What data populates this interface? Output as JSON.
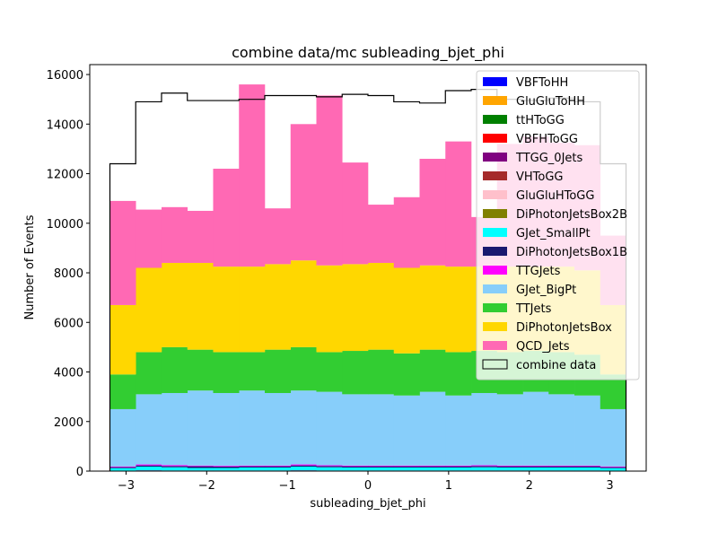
{
  "chart_data": {
    "type": "bar",
    "title": "combine data/mc subleading_bjet_phi",
    "xlabel": "subleading_bjet_phi",
    "ylabel": "Number of Events",
    "xlim": [
      -3.45,
      3.45
    ],
    "ylim": [
      0,
      16400
    ],
    "x_ticks": [
      -3,
      -2,
      -1,
      0,
      1,
      2,
      3
    ],
    "x_tick_labels": [
      "−3",
      "−2",
      "−1",
      "0",
      "1",
      "2",
      "3"
    ],
    "y_ticks": [
      0,
      2000,
      4000,
      6000,
      8000,
      10000,
      12000,
      14000,
      16000
    ],
    "y_tick_labels": [
      "0",
      "2000",
      "4000",
      "6000",
      "8000",
      "10000",
      "12000",
      "14000",
      "16000"
    ],
    "bin_edges": [
      -3.2,
      -2.88,
      -2.56,
      -2.24,
      -1.92,
      -1.6,
      -1.28,
      -0.96,
      -0.64,
      -0.32,
      0.0,
      0.32,
      0.64,
      0.96,
      1.28,
      1.6,
      1.92,
      2.24,
      2.56,
      2.88,
      3.2
    ],
    "stacked": true,
    "legend_position": "upper right",
    "series": [
      {
        "name": "VBFToHH",
        "color": "#0000ff",
        "values": [
          0,
          0,
          0,
          0,
          0,
          0,
          0,
          0,
          0,
          0,
          0,
          0,
          0,
          0,
          0,
          0,
          0,
          0,
          0,
          0
        ]
      },
      {
        "name": "GluGluToHH",
        "color": "#ffa500",
        "values": [
          0,
          0,
          0,
          0,
          0,
          0,
          0,
          0,
          0,
          0,
          0,
          0,
          0,
          0,
          0,
          0,
          0,
          0,
          0,
          0
        ]
      },
      {
        "name": "ttHToGG",
        "color": "#008000",
        "values": [
          0,
          0,
          0,
          0,
          0,
          0,
          0,
          0,
          0,
          0,
          0,
          0,
          0,
          0,
          0,
          0,
          0,
          0,
          0,
          0
        ]
      },
      {
        "name": "VBFHToGG",
        "color": "#ff0000",
        "values": [
          0,
          0,
          0,
          0,
          0,
          0,
          0,
          0,
          0,
          0,
          0,
          0,
          0,
          0,
          0,
          0,
          0,
          0,
          0,
          0
        ]
      },
      {
        "name": "TTGG_0Jets",
        "color": "#800080",
        "values": [
          20,
          30,
          25,
          25,
          25,
          25,
          25,
          30,
          25,
          25,
          25,
          25,
          25,
          25,
          25,
          25,
          25,
          25,
          25,
          20
        ]
      },
      {
        "name": "VHToGG",
        "color": "#a52a2a",
        "values": [
          0,
          0,
          0,
          0,
          0,
          0,
          0,
          0,
          0,
          0,
          0,
          0,
          0,
          0,
          0,
          0,
          0,
          0,
          0,
          0
        ]
      },
      {
        "name": "GluGluHToGG",
        "color": "#ffc0cb",
        "values": [
          0,
          0,
          0,
          0,
          0,
          0,
          0,
          0,
          0,
          0,
          0,
          0,
          0,
          0,
          0,
          0,
          0,
          0,
          0,
          0
        ]
      },
      {
        "name": "DiPhotonJetsBox2B",
        "color": "#808000",
        "values": [
          0,
          0,
          0,
          0,
          0,
          0,
          0,
          0,
          0,
          0,
          0,
          0,
          0,
          0,
          0,
          0,
          0,
          0,
          0,
          0
        ]
      },
      {
        "name": "GJet_SmallPt",
        "color": "#00ffff",
        "values": [
          100,
          150,
          130,
          100,
          100,
          120,
          120,
          150,
          130,
          120,
          120,
          120,
          120,
          120,
          130,
          120,
          120,
          120,
          120,
          100
        ]
      },
      {
        "name": "DiPhotonJetsBox1B",
        "color": "#191970",
        "values": [
          40,
          50,
          50,
          70,
          60,
          50,
          50,
          50,
          50,
          50,
          50,
          50,
          50,
          50,
          50,
          50,
          50,
          50,
          50,
          40
        ]
      },
      {
        "name": "TTGJets",
        "color": "#ff00ff",
        "values": [
          30,
          40,
          40,
          30,
          30,
          30,
          30,
          40,
          30,
          30,
          30,
          30,
          30,
          30,
          30,
          30,
          30,
          30,
          30,
          30
        ]
      },
      {
        "name": "GJet_BigPt",
        "color": "#87cefa",
        "values": [
          2310,
          2830,
          2905,
          3025,
          2935,
          3025,
          2925,
          2980,
          2965,
          2875,
          2875,
          2825,
          2975,
          2825,
          2915,
          2875,
          2975,
          2875,
          2825,
          2310
        ]
      },
      {
        "name": "TTJets",
        "color": "#32cd32",
        "values": [
          1400,
          1700,
          1850,
          1650,
          1650,
          1550,
          1750,
          1750,
          1600,
          1750,
          1800,
          1700,
          1700,
          1750,
          1700,
          1700,
          1650,
          1700,
          1650,
          1400
        ]
      },
      {
        "name": "DiPhotonJetsBox",
        "color": "#ffd700",
        "values": [
          2800,
          3400,
          3400,
          3500,
          3450,
          3450,
          3450,
          3500,
          3500,
          3500,
          3500,
          3450,
          3400,
          3450,
          3400,
          3450,
          3400,
          3450,
          3400,
          2800
        ]
      },
      {
        "name": "QCD_Jets",
        "color": "#ff69b4",
        "values": [
          4200,
          2350,
          2250,
          2100,
          3950,
          7350,
          2250,
          5500,
          6850,
          4100,
          2350,
          2850,
          4300,
          5050,
          2000,
          4950,
          5250,
          5000,
          5050,
          2800
        ]
      }
    ],
    "data_series": {
      "name": "combine data",
      "style": "step",
      "color": "#000000",
      "values": [
        12400,
        14900,
        15250,
        14950,
        14950,
        15000,
        15150,
        15150,
        15100,
        15200,
        15150,
        14900,
        14850,
        15350,
        15400,
        15000,
        14950,
        15050,
        14900,
        12400
      ]
    }
  }
}
